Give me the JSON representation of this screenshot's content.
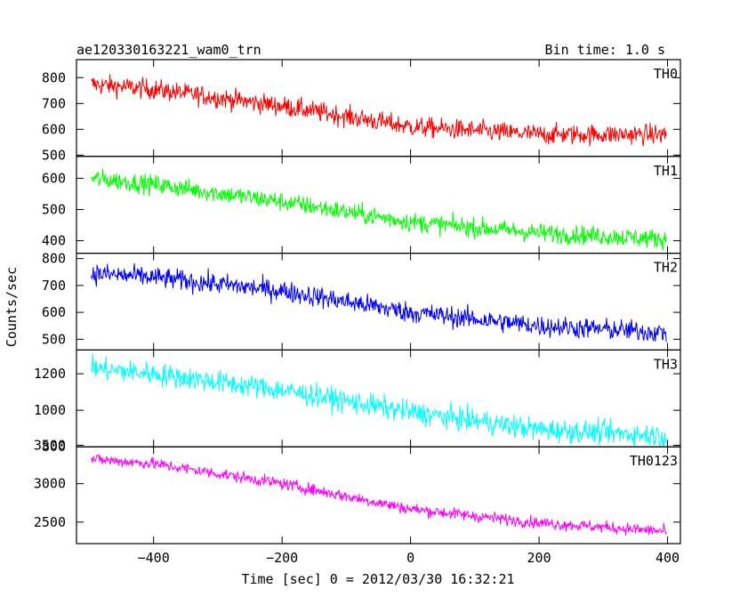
{
  "chart_data": {
    "type": "line",
    "title": "ae120330163221_wam0_trn",
    "subtitle": "Bin time: 1.0 s",
    "xlabel": "Time [sec] 0 = 2012/03/30 16:32:21",
    "ylabel": "Counts/sec",
    "xlim": [
      -520,
      420
    ],
    "xticks": [
      -400,
      -200,
      0,
      200,
      400
    ],
    "x_range": [
      -497,
      398
    ],
    "panels": [
      {
        "name": "TH0",
        "color": "#ff0000",
        "ylim": [
          495,
          870
        ],
        "yticks": [
          500,
          600,
          700,
          800
        ],
        "trend_x": [
          -497,
          -400,
          -200,
          0,
          200,
          398
        ],
        "trend_y": [
          775,
          755,
          690,
          610,
          580,
          580
        ],
        "noise": 28
      },
      {
        "name": "TH1",
        "color": "#00ff00",
        "ylim": [
          360,
          670
        ],
        "yticks": [
          400,
          500,
          600
        ],
        "trend_x": [
          -497,
          -400,
          -200,
          0,
          200,
          398
        ],
        "trend_y": [
          600,
          580,
          525,
          460,
          425,
          405
        ],
        "noise": 22
      },
      {
        "name": "TH2",
        "color": "#0000ff",
        "ylim": [
          460,
          820
        ],
        "yticks": [
          500,
          600,
          700,
          800
        ],
        "trend_x": [
          -497,
          -400,
          -200,
          0,
          200,
          398
        ],
        "trend_y": [
          745,
          730,
          680,
          600,
          550,
          525
        ],
        "noise": 28
      },
      {
        "name": "TH3",
        "color": "#00ffff",
        "ylim": [
          800,
          1330
        ],
        "yticks": [
          800,
          1000,
          1200
        ],
        "trend_x": [
          -497,
          -400,
          -200,
          0,
          200,
          398
        ],
        "trend_y": [
          1230,
          1200,
          1110,
          990,
          895,
          860
        ],
        "noise": 45
      },
      {
        "name": "TH0123",
        "color": "#ff00ff",
        "ylim": [
          2220,
          3480
        ],
        "yticks": [
          2500,
          3000,
          3500
        ],
        "trend_x": [
          -497,
          -400,
          -200,
          0,
          200,
          398
        ],
        "trend_y": [
          3320,
          3260,
          3000,
          2670,
          2490,
          2380
        ],
        "noise": 55
      }
    ]
  }
}
